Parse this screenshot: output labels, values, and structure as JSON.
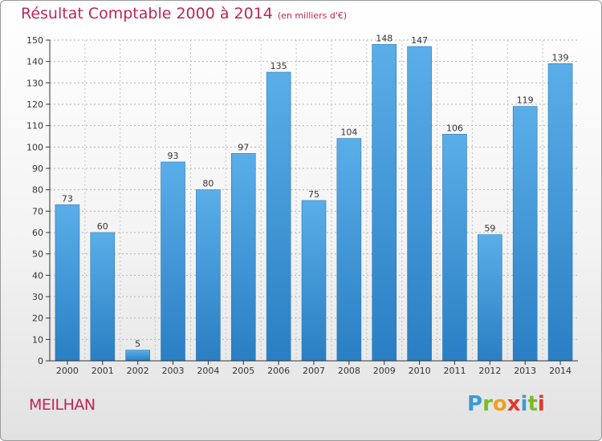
{
  "chart_data": {
    "type": "bar",
    "title": "Résultat Comptable 2000 à 2014",
    "unit_label": "(en milliers d'€)",
    "categories": [
      "2000",
      "2001",
      "2002",
      "2003",
      "2004",
      "2005",
      "2006",
      "2007",
      "2008",
      "2009",
      "2010",
      "2011",
      "2012",
      "2013",
      "2014"
    ],
    "values": [
      73,
      60,
      5,
      93,
      80,
      97,
      135,
      75,
      104,
      148,
      147,
      106,
      59,
      119,
      139
    ],
    "ylim": [
      0,
      150
    ],
    "yticks": [
      0,
      10,
      20,
      30,
      40,
      50,
      60,
      70,
      80,
      90,
      100,
      110,
      120,
      130,
      140,
      150
    ],
    "grid": true,
    "xlabel": "",
    "ylabel": ""
  },
  "footer": {
    "city": "MEILHAN",
    "logo_letters": [
      "P",
      "r",
      "o",
      "x",
      "i",
      "t",
      "i"
    ],
    "logo_colors": [
      "#3c9bd8",
      "#7cba2c",
      "#f0a020",
      "#e03a2e",
      "#3c9bd8",
      "#7cba2c",
      "#e03a2e"
    ]
  },
  "colors": {
    "bar_top": "#5aaee8",
    "bar_bottom": "#2a7fc4",
    "accent": "#c0245c"
  }
}
